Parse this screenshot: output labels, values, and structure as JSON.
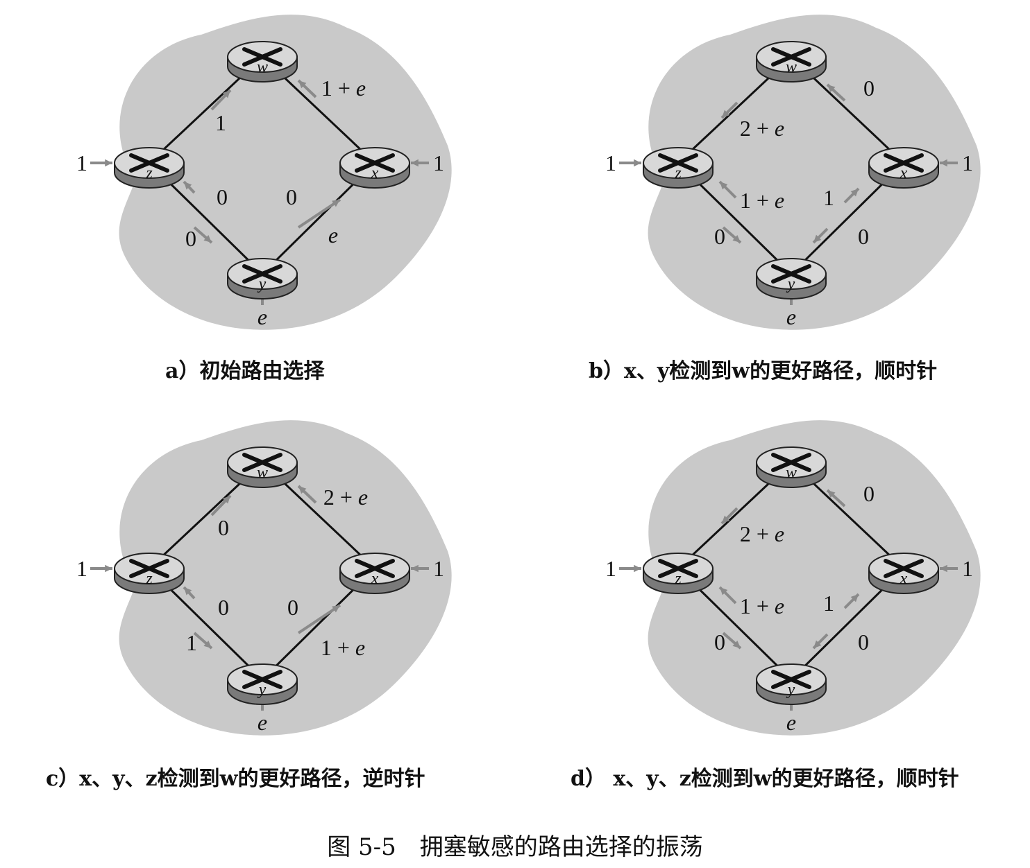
{
  "nodes": {
    "w": "w",
    "x": "x",
    "y": "y",
    "z": "z"
  },
  "panels": [
    {
      "caption": "a）初始路由选择",
      "input_z": "1",
      "input_x": "1",
      "input_y": "e",
      "labels": {
        "zw": "1",
        "xw": "1 + e",
        "zy_upper": "0",
        "zy_lower": "0",
        "xy_upper": "0",
        "xy_lower": "e"
      }
    },
    {
      "caption": "b）x、y检测到w的更好路径，顺时针",
      "input_z": "1",
      "input_x": "1",
      "input_y": "e",
      "labels": {
        "zw": "2 + e",
        "xw": "0",
        "zy_upper": "1 + e",
        "zy_lower": "0",
        "xy_upper": "1",
        "xy_lower": "0"
      }
    },
    {
      "caption": "c）x、y、z检测到w的更好路径，逆时针",
      "input_z": "1",
      "input_x": "1",
      "input_y": "e",
      "labels": {
        "zw": "0",
        "xw": "2 + e",
        "zy_upper": "0",
        "zy_lower": "1",
        "xy_upper": "0",
        "xy_lower": "1 + e"
      }
    },
    {
      "caption": "d） x、y、z检测到w的更好路径，顺时针",
      "input_z": "1",
      "input_x": "1",
      "input_y": "e",
      "labels": {
        "zw": "2 + e",
        "xw": "0",
        "zy_upper": "1 + e",
        "zy_lower": "0",
        "xy_upper": "1",
        "xy_lower": "0"
      }
    }
  ],
  "figure_caption": "图 5-5　拥塞敏感的路由选择的振荡",
  "colors": {
    "cloud": "#c9c9c9",
    "link": "#111111",
    "arrow": "#8a8a8a",
    "router_top": "#d8d8d8",
    "router_side": "#7a7a7a"
  }
}
